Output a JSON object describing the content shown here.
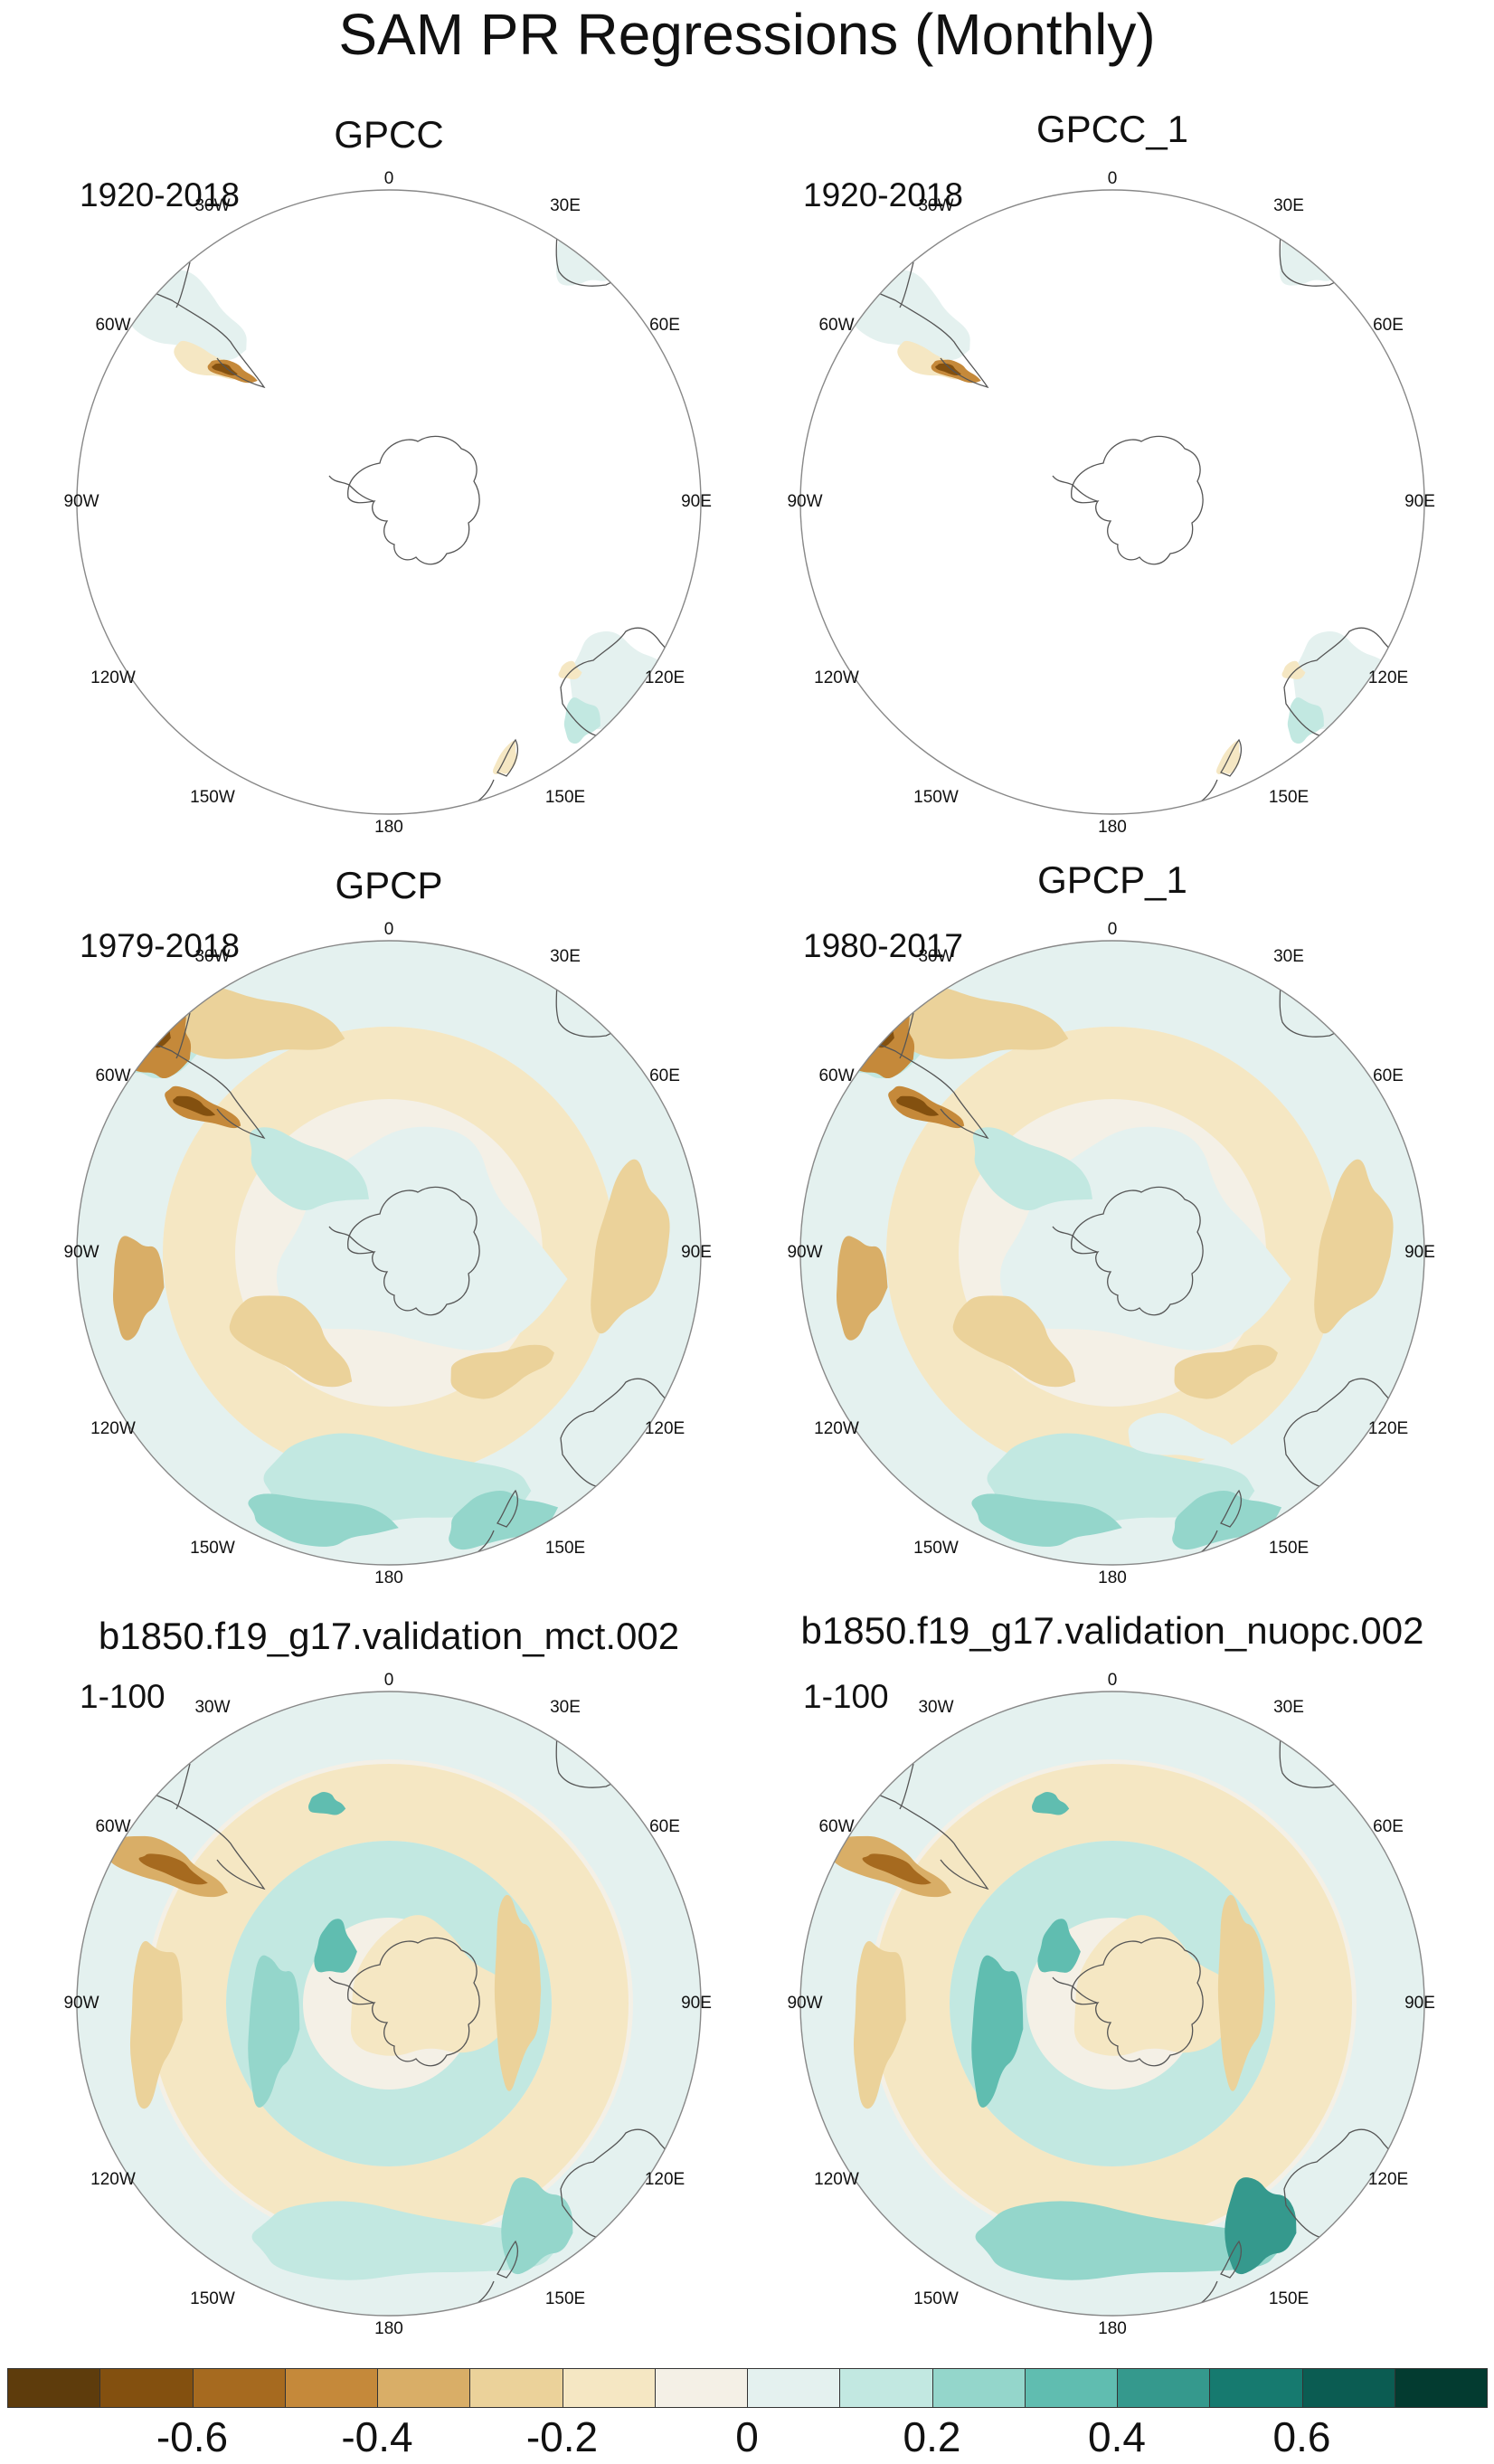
{
  "title": "SAM PR Regressions (Monthly)",
  "panels": [
    {
      "title": "GPCC",
      "years": "1920-2018",
      "style": "gpcc"
    },
    {
      "title": "GPCC_1",
      "years": "1920-2018",
      "style": "gpcc"
    },
    {
      "title": "GPCP",
      "years": "1979-2018",
      "style": "gpcp"
    },
    {
      "title": "GPCP_1",
      "years": "1980-2017",
      "style": "gpcp"
    },
    {
      "title": "b1850.f19_g17.validation_mct.002",
      "years": "1-100",
      "style": "model"
    },
    {
      "title": "b1850.f19_g17.validation_nuopc.002",
      "years": "1-100",
      "style": "model"
    }
  ],
  "longitude_labels": [
    "0",
    "30E",
    "60E",
    "90E",
    "120E",
    "150E",
    "180",
    "150W",
    "120W",
    "90W",
    "60W",
    "30W"
  ],
  "colorbar": {
    "colors": [
      "#5e3c0c",
      "#83500f",
      "#a66a1f",
      "#c5893a",
      "#d9ae67",
      "#ebd29a",
      "#f5e7c3",
      "#f4f0e6",
      "#e4f1ef",
      "#c2e8e1",
      "#94d6cb",
      "#60bdb0",
      "#35998d",
      "#167a6f",
      "#0b5c52",
      "#033b30"
    ],
    "tick_labels": [
      "-0.6",
      "-0.4",
      "-0.2",
      "0",
      "0.2",
      "0.4",
      "0.6"
    ]
  },
  "palette": {
    "land": "#f4f0e6",
    "ocean": "#ffffff",
    "coast": "#555555",
    "border": "#888888"
  }
}
